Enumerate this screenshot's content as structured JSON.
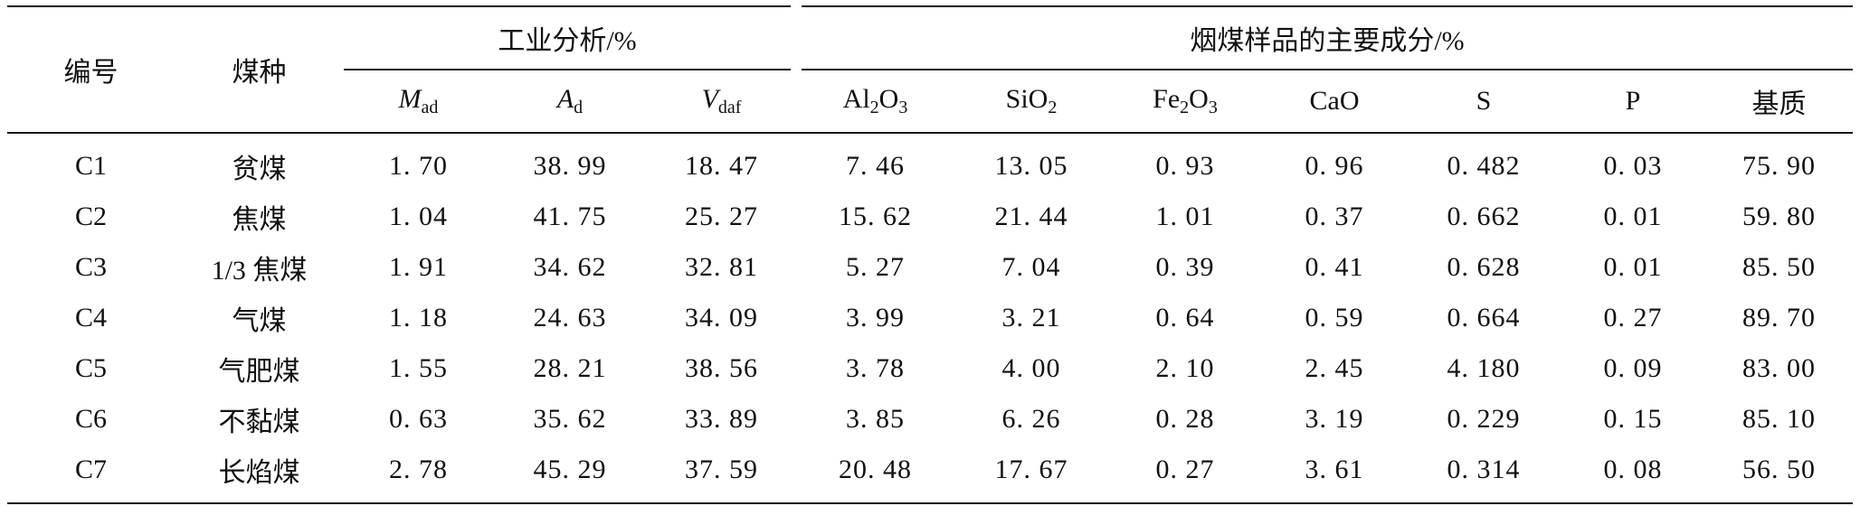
{
  "table": {
    "header": {
      "id_label": "编号",
      "type_label": "煤种",
      "group_industrial": "工业分析/%",
      "group_components": "烟煤样品的主要成分/%",
      "industrial_cols": [
        {
          "main": "M",
          "sub": "ad"
        },
        {
          "main": "A",
          "sub": "d"
        },
        {
          "main": "V",
          "sub": "daf"
        }
      ],
      "component_cols": {
        "al2o3": {
          "a": "Al",
          "a_sub": "2",
          "b": "O",
          "b_sub": "3"
        },
        "sio2": {
          "a": "SiO",
          "a_sub": "2"
        },
        "fe2o3": {
          "a": "Fe",
          "a_sub": "2",
          "b": "O",
          "b_sub": "3"
        },
        "cao": "CaO",
        "s": "S",
        "p": "P",
        "base": "基质"
      }
    },
    "rows": [
      {
        "id": "C1",
        "type": "贫煤",
        "m": "1. 70",
        "a": "38. 99",
        "v": "18. 47",
        "al2o3": "7. 46",
        "sio2": "13. 05",
        "fe2o3": "0. 93",
        "cao": "0. 96",
        "s": "0. 482",
        "p": "0. 03",
        "base": "75. 90"
      },
      {
        "id": "C2",
        "type": "焦煤",
        "m": "1. 04",
        "a": "41. 75",
        "v": "25. 27",
        "al2o3": "15. 62",
        "sio2": "21. 44",
        "fe2o3": "1. 01",
        "cao": "0. 37",
        "s": "0. 662",
        "p": "0. 01",
        "base": "59. 80"
      },
      {
        "id": "C3",
        "type": "1/3 焦煤",
        "m": "1. 91",
        "a": "34. 62",
        "v": "32. 81",
        "al2o3": "5. 27",
        "sio2": "7. 04",
        "fe2o3": "0. 39",
        "cao": "0. 41",
        "s": "0. 628",
        "p": "0. 01",
        "base": "85. 50"
      },
      {
        "id": "C4",
        "type": "气煤",
        "m": "1. 18",
        "a": "24. 63",
        "v": "34. 09",
        "al2o3": "3. 99",
        "sio2": "3. 21",
        "fe2o3": "0. 64",
        "cao": "0. 59",
        "s": "0. 664",
        "p": "0. 27",
        "base": "89. 70"
      },
      {
        "id": "C5",
        "type": "气肥煤",
        "m": "1. 55",
        "a": "28. 21",
        "v": "38. 56",
        "al2o3": "3. 78",
        "sio2": "4. 00",
        "fe2o3": "2. 10",
        "cao": "2. 45",
        "s": "4. 180",
        "p": "0. 09",
        "base": "83. 00"
      },
      {
        "id": "C6",
        "type": "不黏煤",
        "m": "0. 63",
        "a": "35. 62",
        "v": "33. 89",
        "al2o3": "3. 85",
        "sio2": "6. 26",
        "fe2o3": "0. 28",
        "cao": "3. 19",
        "s": "0. 229",
        "p": "0. 15",
        "base": "85. 10"
      },
      {
        "id": "C7",
        "type": "长焰煤",
        "m": "2. 78",
        "a": "45. 29",
        "v": "37. 59",
        "al2o3": "20. 48",
        "sio2": "17. 67",
        "fe2o3": "0. 27",
        "cao": "3. 61",
        "s": "0. 314",
        "p": "0. 08",
        "base": "56. 50"
      }
    ]
  }
}
